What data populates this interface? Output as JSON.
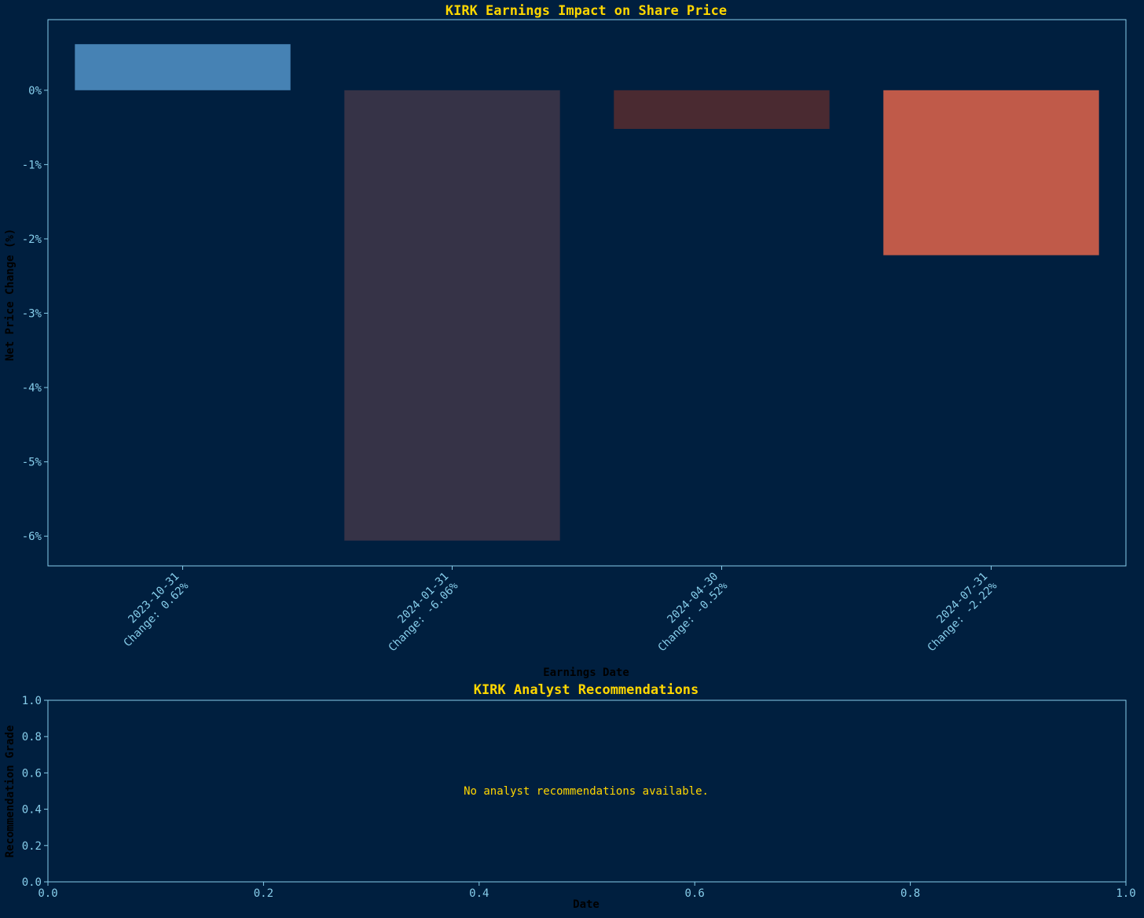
{
  "colors": {
    "background": "#001f3f",
    "title": "#FFD700",
    "tick_text": "#87CEEB",
    "axis_label": "#000000",
    "spine": "#87CEEB"
  },
  "chart_data": [
    {
      "type": "bar",
      "title": "KIRK Earnings Impact on Share Price",
      "xlabel": "Earnings Date",
      "ylabel": "Net Price Change (%)",
      "categories": [
        "2023-10-31",
        "2024-01-31",
        "2024-04-30",
        "2024-07-31"
      ],
      "tick_lines": [
        [
          "2023-10-31",
          "Change: 0.62%"
        ],
        [
          "2024-01-31",
          "Change: -6.06%"
        ],
        [
          "2024-04-30",
          "Change: -0.52%"
        ],
        [
          "2024-07-31",
          "Change: -2.22%"
        ]
      ],
      "values": [
        0.62,
        -6.06,
        -0.52,
        -2.22
      ],
      "bar_colors": [
        "#4682B4",
        "#363347",
        "#4A2A31",
        "#C05A49"
      ],
      "ylim": [
        -6.4,
        0.95
      ],
      "yticks": [
        0,
        -1,
        -2,
        -3,
        -4,
        -5,
        -6
      ],
      "ytick_labels": [
        "0%",
        "-1%",
        "-2%",
        "-3%",
        "-4%",
        "-5%",
        "-6%"
      ],
      "grid": false,
      "legend": "none"
    },
    {
      "type": "line",
      "title": "KIRK Analyst Recommendations",
      "xlabel": "Date",
      "ylabel": "Recommendation Grade",
      "series": [],
      "xlim": [
        0,
        1
      ],
      "ylim": [
        0,
        1
      ],
      "xticks": [
        0,
        0.2,
        0.4,
        0.6,
        0.8,
        1.0
      ],
      "xtick_labels": [
        "0.0",
        "0.2",
        "0.4",
        "0.6",
        "0.8",
        "1.0"
      ],
      "yticks": [
        0,
        0.2,
        0.4,
        0.6,
        0.8,
        1.0
      ],
      "ytick_labels": [
        "0.0",
        "0.2",
        "0.4",
        "0.6",
        "0.8",
        "1.0"
      ],
      "annotation": "No analyst recommendations available.",
      "grid": false,
      "legend": "none"
    }
  ]
}
